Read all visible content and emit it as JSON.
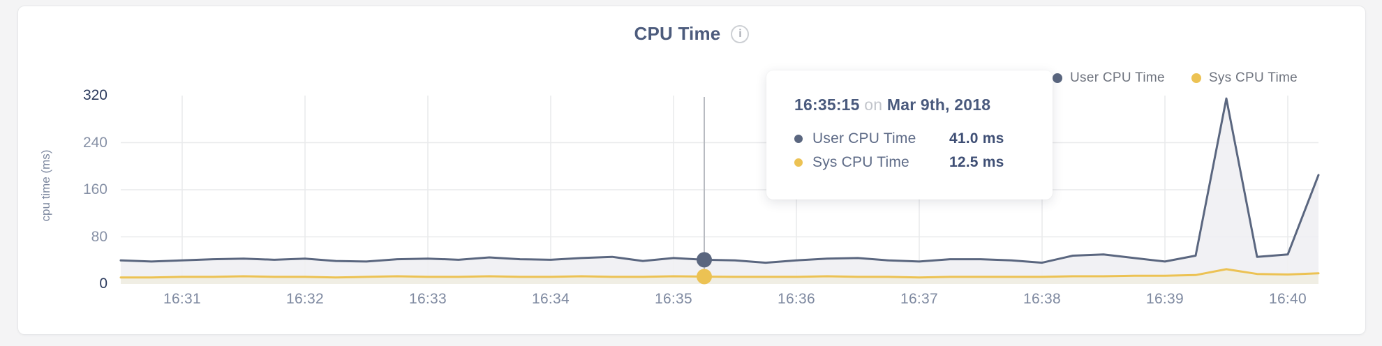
{
  "header": {
    "title": "CPU Time",
    "info_icon_glyph": "i"
  },
  "legend": {
    "items": [
      {
        "label": "User CPU Time",
        "color": "#5a667f"
      },
      {
        "label": "Sys CPU Time",
        "color": "#ecc253"
      }
    ]
  },
  "tooltip": {
    "time": "16:35:15",
    "conjunction": "on",
    "date": "Mar 9th, 2018",
    "rows": [
      {
        "label": "User CPU Time",
        "value": "41.0 ms",
        "color": "#5a667f"
      },
      {
        "label": "Sys CPU Time",
        "value": "12.5 ms",
        "color": "#ecc253"
      }
    ]
  },
  "chart_data": {
    "type": "area",
    "title": "CPU Time",
    "xlabel": "",
    "ylabel": "cpu time (ms)",
    "ylim": [
      0,
      320
    ],
    "y_ticks": [
      320,
      240,
      160,
      80,
      0
    ],
    "y_strong_ticks": [
      320,
      0
    ],
    "y_gridlines": [
      80,
      160,
      240
    ],
    "grid": true,
    "legend_position": "top-right",
    "date": "Mar 9th, 2018",
    "x_ticks": [
      "16:31",
      "16:32",
      "16:33",
      "16:34",
      "16:35",
      "16:36",
      "16:37",
      "16:38",
      "16:39",
      "16:40"
    ],
    "x_tick_indices": [
      2,
      6,
      10,
      14,
      18,
      22,
      26,
      30,
      34,
      38
    ],
    "x_times": [
      "16:30:30",
      "16:30:45",
      "16:31:00",
      "16:31:15",
      "16:31:30",
      "16:31:45",
      "16:32:00",
      "16:32:15",
      "16:32:30",
      "16:32:45",
      "16:33:00",
      "16:33:15",
      "16:33:30",
      "16:33:45",
      "16:34:00",
      "16:34:15",
      "16:34:30",
      "16:34:45",
      "16:35:00",
      "16:35:15",
      "16:35:30",
      "16:35:45",
      "16:36:00",
      "16:36:15",
      "16:36:30",
      "16:36:45",
      "16:37:00",
      "16:37:15",
      "16:37:30",
      "16:37:45",
      "16:38:00",
      "16:38:15",
      "16:38:30",
      "16:38:45",
      "16:39:00",
      "16:39:15",
      "16:39:30",
      "16:39:45",
      "16:40:00",
      "16:40:15"
    ],
    "hover_index": 19,
    "crosshair_color": "#b8bbc1",
    "gridline_color": "#e9eaec",
    "series": [
      {
        "name": "User CPU Time",
        "color": "#5a667f",
        "fill": "#eff0f3",
        "values": [
          40,
          38,
          40,
          42,
          43,
          41,
          43,
          39,
          38,
          42,
          43,
          41,
          45,
          42,
          41,
          44,
          46,
          39,
          44,
          41,
          40,
          36,
          40,
          43,
          44,
          40,
          38,
          42,
          42,
          40,
          36,
          48,
          50,
          44,
          38,
          48,
          315,
          46,
          50,
          185
        ]
      },
      {
        "name": "Sys CPU Time",
        "color": "#ecc253",
        "fill": "#f0ede2",
        "values": [
          11,
          11,
          12,
          12,
          13,
          12,
          12,
          11,
          12,
          13,
          12,
          12,
          13,
          12,
          12,
          13,
          12,
          12,
          13,
          12.5,
          12,
          12,
          12,
          13,
          12,
          12,
          11,
          12,
          12,
          12,
          12,
          13,
          13,
          14,
          14,
          15,
          25,
          17,
          16,
          18
        ]
      }
    ]
  }
}
